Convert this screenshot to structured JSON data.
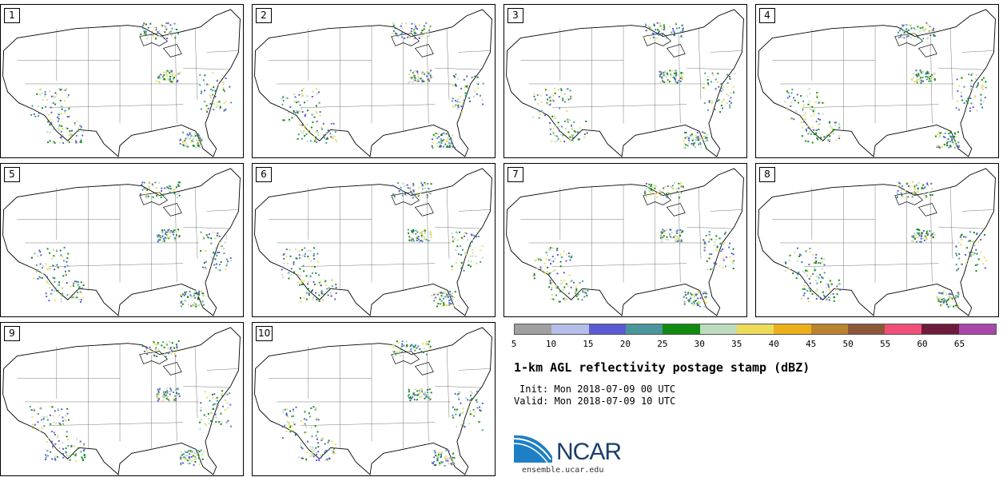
{
  "panels": [
    {
      "label": "1"
    },
    {
      "label": "2"
    },
    {
      "label": "3"
    },
    {
      "label": "4"
    },
    {
      "label": "5"
    },
    {
      "label": "6"
    },
    {
      "label": "7"
    },
    {
      "label": "8"
    },
    {
      "label": "9"
    },
    {
      "label": "10"
    }
  ],
  "colorbar": {
    "colors": [
      "#a0a0a0",
      "#b4bee8",
      "#5a5ad2",
      "#4a969c",
      "#108a10",
      "#bcdcbc",
      "#ecdc5a",
      "#ecb01c",
      "#b88430",
      "#8c5838",
      "#f05078",
      "#6e1c3c",
      "#a848a8"
    ],
    "ticks": [
      "5",
      "10",
      "15",
      "20",
      "25",
      "30",
      "35",
      "40",
      "45",
      "50",
      "55",
      "60",
      "65"
    ]
  },
  "title": "1-km AGL reflectivity postage stamp (dBZ)",
  "init": "Init: Mon 2018-07-09 00 UTC",
  "valid": "Valid: Mon 2018-07-09 10 UTC",
  "logo": {
    "word": "NCAR",
    "site": "ensemble.ucar.edu",
    "brand_color": "#1b3e6b",
    "swoosh_color": "#1f7fc4"
  }
}
